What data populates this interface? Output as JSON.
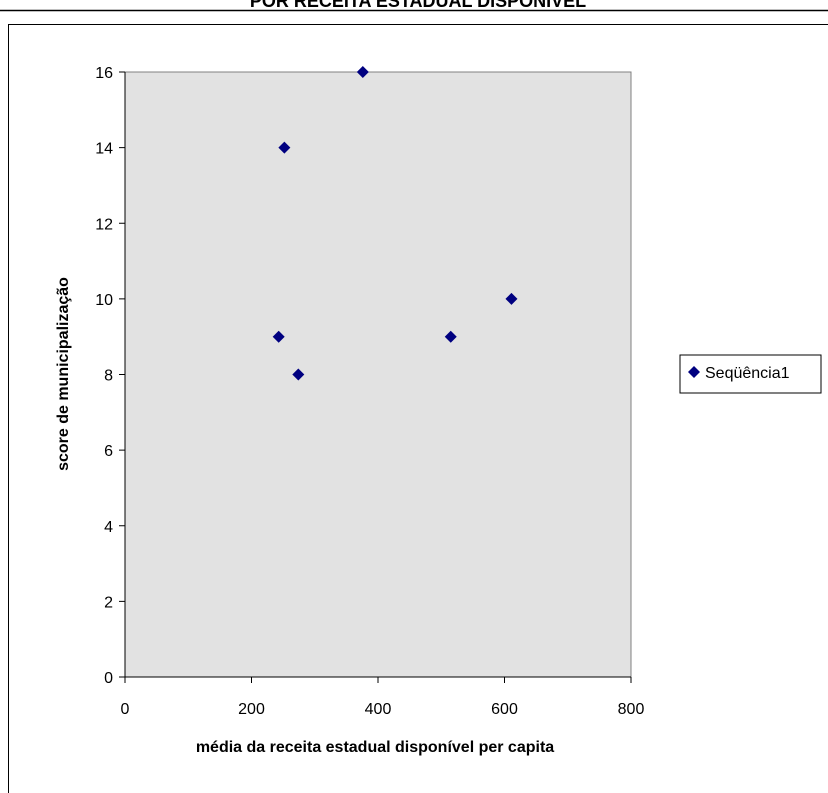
{
  "chart_data": {
    "type": "scatter",
    "title": "POR RECEITA ESTADUAL DISPONÍVEL",
    "xlabel": "média da receita estadual disponível per capita",
    "ylabel": "score de municipalização",
    "xlim": [
      0,
      800
    ],
    "ylim": [
      0,
      16
    ],
    "xticks": [
      0,
      200,
      400,
      600,
      800
    ],
    "yticks": [
      0,
      2,
      4,
      6,
      8,
      10,
      12,
      14,
      16
    ],
    "grid": false,
    "legend": "right",
    "plot_background": "#e2e2e2",
    "series": [
      {
        "name": "Seqüência1",
        "color": "#000080",
        "marker": "diamond",
        "points": [
          {
            "x": 376,
            "y": 16
          },
          {
            "x": 252,
            "y": 14
          },
          {
            "x": 611,
            "y": 10
          },
          {
            "x": 243,
            "y": 9
          },
          {
            "x": 515,
            "y": 9
          },
          {
            "x": 274,
            "y": 8
          }
        ]
      }
    ]
  }
}
